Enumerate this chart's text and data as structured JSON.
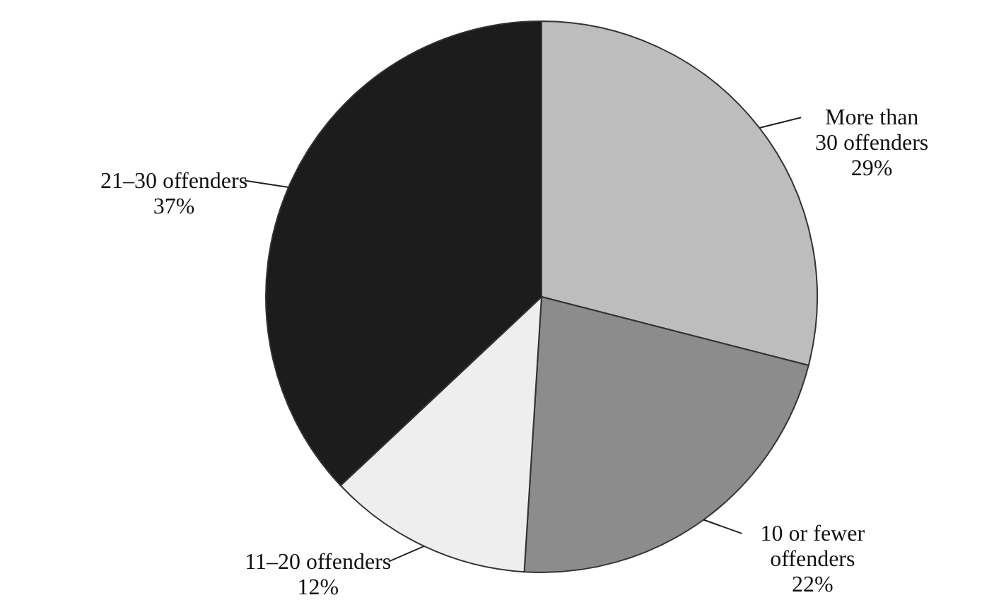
{
  "chart_data": {
    "type": "pie",
    "categories": [
      "More than 30 offenders",
      "10 or fewer offenders",
      "11–20 offenders",
      "21–30 offenders"
    ],
    "values": [
      29,
      22,
      12,
      37
    ],
    "colors": [
      "#bdbdbd",
      "#8c8c8c",
      "#eeeeee",
      "#1c1c1c"
    ],
    "value_labels": [
      "29%",
      "22%",
      "12%",
      "37%"
    ]
  }
}
